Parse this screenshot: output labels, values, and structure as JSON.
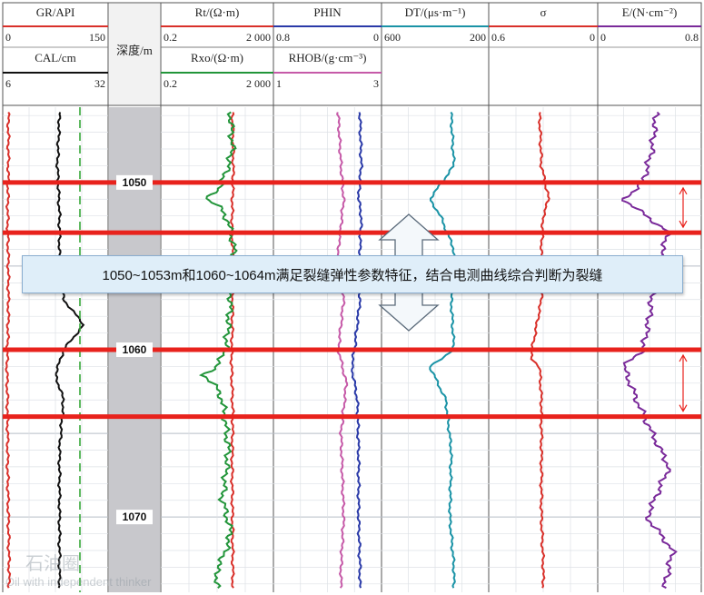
{
  "header": {
    "gr": {
      "label": "GR/API",
      "min": "0",
      "max": "150",
      "color": "#d9302a"
    },
    "cal": {
      "label": "CAL/cm",
      "min": "6",
      "max": "32",
      "color": "#111111"
    },
    "depth": {
      "label": "深度/m"
    },
    "rt": {
      "label": "Rt/(Ω·m)",
      "min": "0.2",
      "max": "2 000",
      "color": "#d9302a"
    },
    "rxo": {
      "label": "Rxo/(Ω·m)",
      "min": "0.2",
      "max": "2 000",
      "color": "#22953a"
    },
    "phin": {
      "label": "PHIN",
      "min": "0.8",
      "max": "0",
      "color": "#2a3aa8"
    },
    "rhob": {
      "label": "RHOB/(g·cm⁻³)",
      "min": "1",
      "max": "3",
      "color": "#c65aa8"
    },
    "dt": {
      "label": "DT/(μs·m⁻¹)",
      "min": "600",
      "max": "200",
      "color": "#1a93a6"
    },
    "sigma": {
      "label": "σ",
      "min": "0.6",
      "max": "0",
      "color": "#d9302a"
    },
    "e": {
      "label": "E/(N·cm⁻²)",
      "min": "0",
      "max": "0.8",
      "color": "#7a2a9a"
    }
  },
  "depth_labels": [
    "1050",
    "1060",
    "1070"
  ],
  "callout": "1050~1053m和1060~1064m满足裂缝弹性参数特征，结合电测曲线综合判断为裂缝",
  "watermark": {
    "line1": "石油圈",
    "line2": "Oil with independent thinker"
  },
  "colors": {
    "marker": "#e8221c",
    "callout_bg": "#dfeef9",
    "depth_track": "#c8c8cc"
  },
  "chart_data": {
    "type": "line",
    "x_axis": "depth (m)",
    "depth_range": [
      1045.5,
      1074.5
    ],
    "fracture_intervals": [
      [
        1050,
        1053
      ],
      [
        1060,
        1064
      ]
    ],
    "series": [
      {
        "name": "GR/API",
        "scale": [
          0,
          150
        ],
        "x": [
          1046,
          1049,
          1052,
          1055,
          1058,
          1061,
          1064,
          1067,
          1070,
          1073
        ],
        "values": [
          8,
          8,
          7,
          8,
          8,
          6,
          7,
          7,
          8,
          9
        ]
      },
      {
        "name": "CAL/cm",
        "scale": [
          6,
          32
        ],
        "x": [
          1046,
          1049,
          1052,
          1055,
          1057,
          1058.5,
          1060,
          1061.5,
          1063,
          1066,
          1070,
          1074
        ],
        "values": [
          20,
          19.5,
          20,
          20,
          21,
          26,
          21,
          19,
          21,
          20,
          20,
          20
        ]
      },
      {
        "name": "Rt/(Ω·m)",
        "scale": [
          0.2,
          2000
        ],
        "x": [
          1046,
          1049,
          1052,
          1055,
          1058,
          1061,
          1064,
          1067,
          1070,
          1073
        ],
        "values": [
          70,
          75,
          68,
          72,
          70,
          65,
          72,
          68,
          70,
          72
        ]
      },
      {
        "name": "Rxo/(Ω·m)",
        "scale": [
          0.2,
          2000
        ],
        "x": [
          1046,
          1048,
          1051,
          1052,
          1054,
          1057,
          1060,
          1061.5,
          1063,
          1066,
          1069,
          1071,
          1073
        ],
        "values": [
          60,
          70,
          8,
          40,
          80,
          60,
          40,
          6,
          30,
          50,
          30,
          60,
          20
        ]
      },
      {
        "name": "PHIN",
        "scale": [
          0.8,
          0
        ],
        "x": [
          1046,
          1049,
          1051,
          1052,
          1054,
          1057,
          1060,
          1061,
          1063,
          1066,
          1070,
          1073
        ],
        "values": [
          0.16,
          0.15,
          0.17,
          0.15,
          0.16,
          0.16,
          0.2,
          0.22,
          0.18,
          0.17,
          0.17,
          0.16
        ]
      },
      {
        "name": "RHOB/(g·cm⁻³)",
        "scale": [
          1,
          3
        ],
        "x": [
          1046,
          1049,
          1051,
          1054,
          1057,
          1060,
          1062,
          1065,
          1070,
          1073
        ],
        "values": [
          2.2,
          2.25,
          2.3,
          2.2,
          2.3,
          2.2,
          2.35,
          2.25,
          2.3,
          2.25
        ]
      },
      {
        "name": "DT/(μs·m⁻¹)",
        "scale": [
          600,
          200
        ],
        "x": [
          1046,
          1049,
          1051,
          1052,
          1054,
          1057,
          1060,
          1061,
          1063,
          1066,
          1070,
          1073
        ],
        "values": [
          340,
          330,
          420,
          380,
          330,
          340,
          330,
          420,
          360,
          340,
          345,
          330
        ]
      },
      {
        "name": "σ",
        "scale": [
          0.6,
          0
        ],
        "x": [
          1046,
          1049,
          1051,
          1052,
          1054,
          1057,
          1060.5,
          1061,
          1063,
          1066,
          1070,
          1073
        ],
        "values": [
          0.32,
          0.31,
          0.27,
          0.3,
          0.31,
          0.31,
          0.37,
          0.32,
          0.31,
          0.31,
          0.31,
          0.3
        ]
      },
      {
        "name": "E/(N·cm⁻²)",
        "scale": [
          0,
          0.8
        ],
        "x": [
          1046,
          1048,
          1050,
          1051,
          1053,
          1055,
          1058,
          1060,
          1061,
          1063,
          1065,
          1067,
          1070,
          1072,
          1074
        ],
        "values": [
          0.45,
          0.42,
          0.35,
          0.2,
          0.55,
          0.45,
          0.4,
          0.35,
          0.2,
          0.3,
          0.42,
          0.55,
          0.38,
          0.58,
          0.52
        ]
      }
    ]
  }
}
